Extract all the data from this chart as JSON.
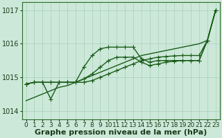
{
  "xlabel": "Graphe pression niveau de la mer (hPa)",
  "ylim": [
    1013.75,
    1017.25
  ],
  "xlim": [
    -0.5,
    23.5
  ],
  "yticks": [
    1014,
    1015,
    1016,
    1017
  ],
  "xticks": [
    0,
    1,
    2,
    3,
    4,
    5,
    6,
    7,
    8,
    9,
    10,
    11,
    12,
    13,
    14,
    15,
    16,
    17,
    18,
    19,
    20,
    21,
    22,
    23
  ],
  "bg_color": "#cce8d8",
  "grid_color": "#aacfbc",
  "line_color": "#1a5c1a",
  "lines": [
    {
      "y": [
        1014.3,
        1014.4,
        1014.5,
        1014.6,
        1014.7,
        1014.75,
        1014.85,
        1014.95,
        1015.05,
        1015.15,
        1015.25,
        1015.35,
        1015.45,
        1015.55,
        1015.65,
        1015.7,
        1015.75,
        1015.8,
        1015.85,
        1015.9,
        1015.95,
        1016.0,
        1016.1,
        1017.0
      ],
      "marker": false
    },
    {
      "y": [
        1014.8,
        1014.85,
        1014.85,
        1014.85,
        1014.85,
        1014.85,
        1014.85,
        1015.3,
        1015.65,
        1015.85,
        1015.9,
        1015.9,
        1015.9,
        1015.9,
        1015.55,
        1015.45,
        1015.5,
        1015.5,
        1015.5,
        1015.5,
        1015.5,
        1015.5,
        1016.1,
        1017.0
      ],
      "marker": true
    },
    {
      "y": [
        1014.8,
        1014.85,
        1014.85,
        1014.35,
        1014.85,
        1014.85,
        1014.85,
        1014.95,
        1015.1,
        1015.3,
        1015.5,
        1015.6,
        1015.6,
        1015.6,
        1015.45,
        1015.35,
        1015.4,
        1015.45,
        1015.48,
        1015.5,
        1015.5,
        1015.5,
        1016.1,
        1017.0
      ],
      "marker": true
    },
    {
      "y": [
        1014.8,
        1014.85,
        1014.85,
        1014.85,
        1014.85,
        1014.85,
        1014.85,
        1014.85,
        1014.9,
        1015.0,
        1015.1,
        1015.2,
        1015.3,
        1015.4,
        1015.5,
        1015.55,
        1015.6,
        1015.62,
        1015.64,
        1015.65,
        1015.65,
        1015.65,
        1016.1,
        1017.0
      ],
      "marker": true
    }
  ],
  "marker_symbol": "+",
  "marker_size": 4,
  "linewidth": 1.0,
  "font_size_xlabel": 8.0,
  "font_size_ytick": 7.0,
  "font_size_xtick": 6.5
}
